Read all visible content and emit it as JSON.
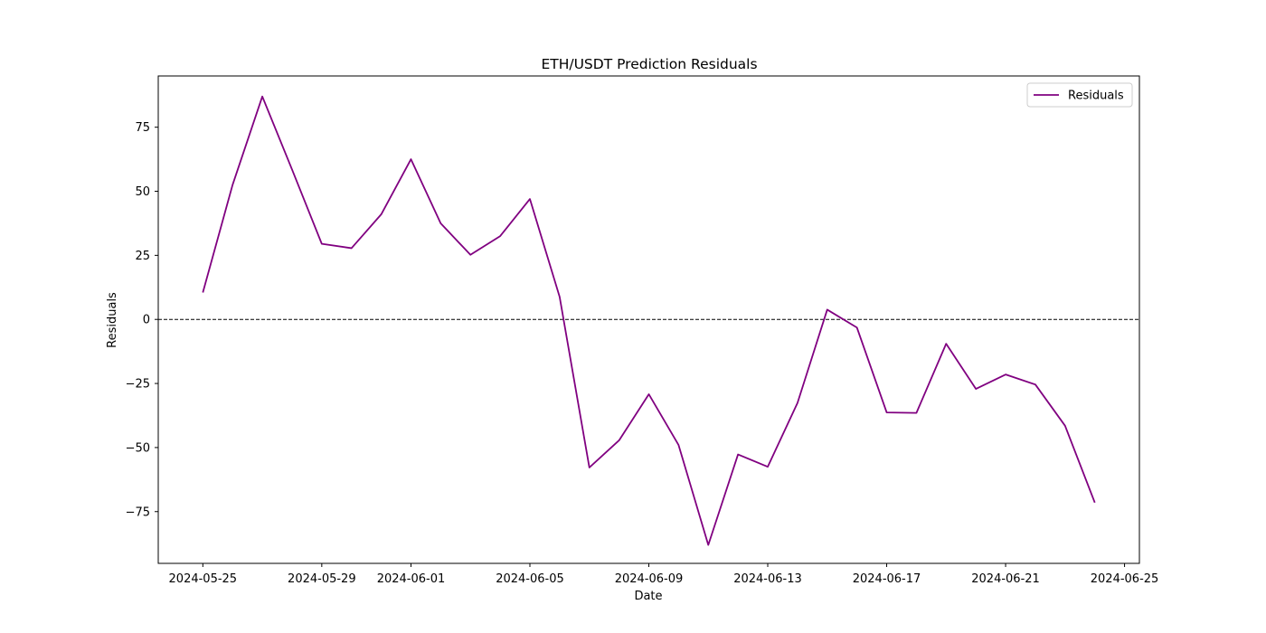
{
  "chart_data": {
    "type": "line",
    "title": "ETH/USDT Prediction Residuals",
    "xlabel": "Date",
    "ylabel": "Residuals",
    "x": [
      "2024-05-25",
      "2024-05-26",
      "2024-05-27",
      "2024-05-28",
      "2024-05-29",
      "2024-05-30",
      "2024-05-31",
      "2024-06-01",
      "2024-06-02",
      "2024-06-03",
      "2024-06-04",
      "2024-06-05",
      "2024-06-06",
      "2024-06-07",
      "2024-06-08",
      "2024-06-09",
      "2024-06-10",
      "2024-06-11",
      "2024-06-12",
      "2024-06-13",
      "2024-06-14",
      "2024-06-15",
      "2024-06-16",
      "2024-06-17",
      "2024-06-18",
      "2024-06-19",
      "2024-06-20",
      "2024-06-21",
      "2024-06-22",
      "2024-06-23",
      "2024-06-24"
    ],
    "series": [
      {
        "name": "Residuals",
        "color": "#800080",
        "values": [
          10.5,
          52.5,
          87.0,
          58.5,
          29.5,
          27.8,
          41.0,
          62.5,
          37.5,
          25.2,
          32.5,
          47.0,
          8.8,
          -57.8,
          -47.2,
          -29.2,
          -49.0,
          -88.0,
          -52.7,
          -57.5,
          -32.6,
          3.8,
          -3.2,
          -36.3,
          -36.5,
          -9.5,
          -27.1,
          -21.5,
          -25.4,
          -41.5,
          -71.5
        ]
      }
    ],
    "reference_line": {
      "y": 0,
      "style": "dashed",
      "color": "#000000"
    },
    "xticks": [
      "2024-05-25",
      "2024-05-29",
      "2024-06-01",
      "2024-06-05",
      "2024-06-09",
      "2024-06-13",
      "2024-06-17",
      "2024-06-21",
      "2024-06-25"
    ],
    "yticks": [
      -75,
      -50,
      -25,
      0,
      25,
      50,
      75
    ],
    "xlim": [
      "2024-05-23.5",
      "2024-06-25.5"
    ],
    "ylim": [
      -95.2,
      95.0
    ],
    "grid": false,
    "legend": {
      "position": "top-right",
      "entries": [
        "Residuals"
      ]
    }
  }
}
